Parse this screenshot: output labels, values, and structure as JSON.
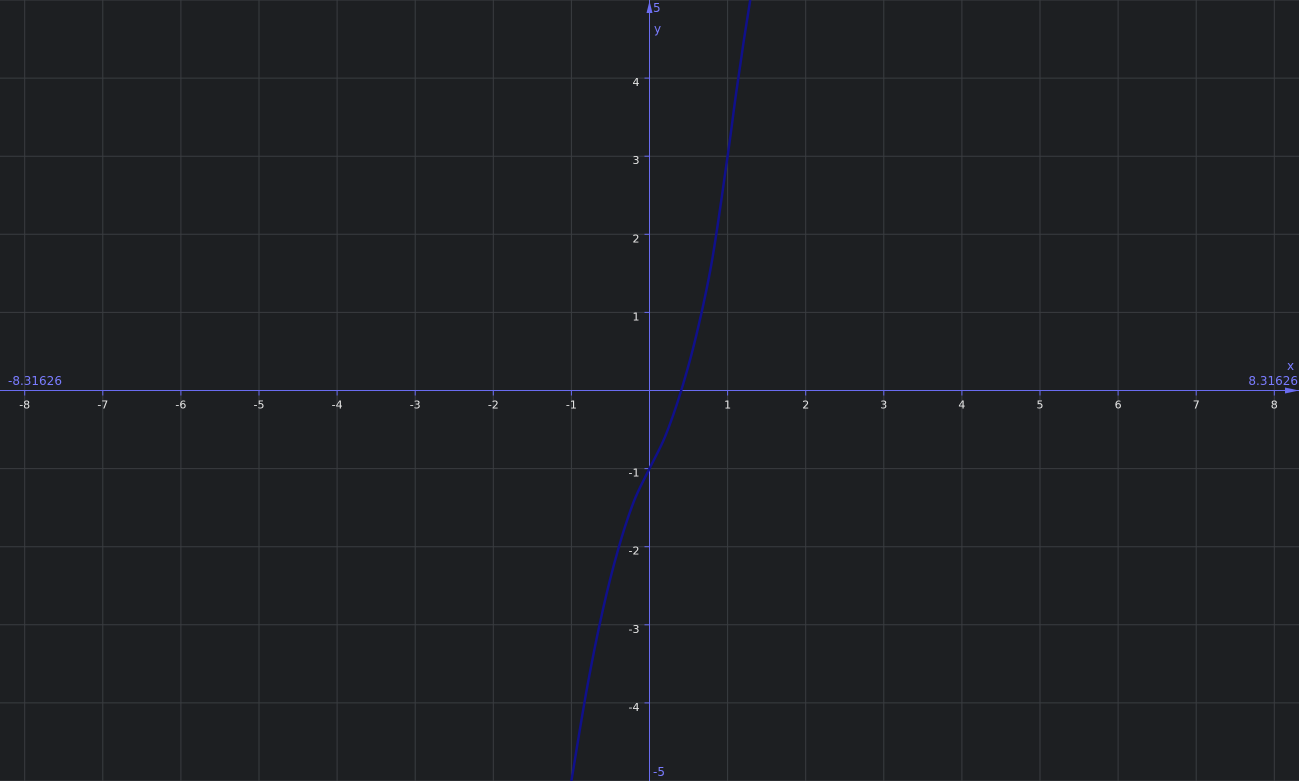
{
  "chart_data": {
    "type": "line",
    "title": "",
    "xlabel": "x",
    "ylabel": "y",
    "xlim": [
      -8.31626,
      8.31626
    ],
    "ylim": [
      -5,
      5
    ],
    "x_min_label": "-8.31626",
    "x_max_label": "8.31626",
    "y_min_label": "-5",
    "y_max_label": "5",
    "x_ticks": [
      "-8",
      "-7",
      "-6",
      "-5",
      "-4",
      "-3",
      "-2",
      "-1",
      "1",
      "2",
      "3",
      "4",
      "5",
      "6",
      "7",
      "8"
    ],
    "y_ticks": [
      "-4",
      "-3",
      "-2",
      "-1",
      "1",
      "2",
      "3",
      "4"
    ],
    "grid": true,
    "colors": {
      "background": "#1d1f22",
      "grid": "#3a3d41",
      "axis": "#6a6cf0",
      "curve": "#10108a",
      "tick_text": "#e6e6e6"
    },
    "series": [
      {
        "x": [
          -1.0,
          -0.8,
          -0.6,
          -0.4,
          -0.2,
          0.0,
          0.2,
          0.4,
          0.6,
          0.8,
          1.0,
          1.1,
          1.2,
          1.29
        ],
        "y": [
          -5.0,
          -3.81,
          -2.82,
          -2.03,
          -1.42,
          -1.0,
          -0.59,
          -0.02,
          0.71,
          1.66,
          3.0,
          3.74,
          4.43,
          5.0
        ]
      }
    ]
  }
}
